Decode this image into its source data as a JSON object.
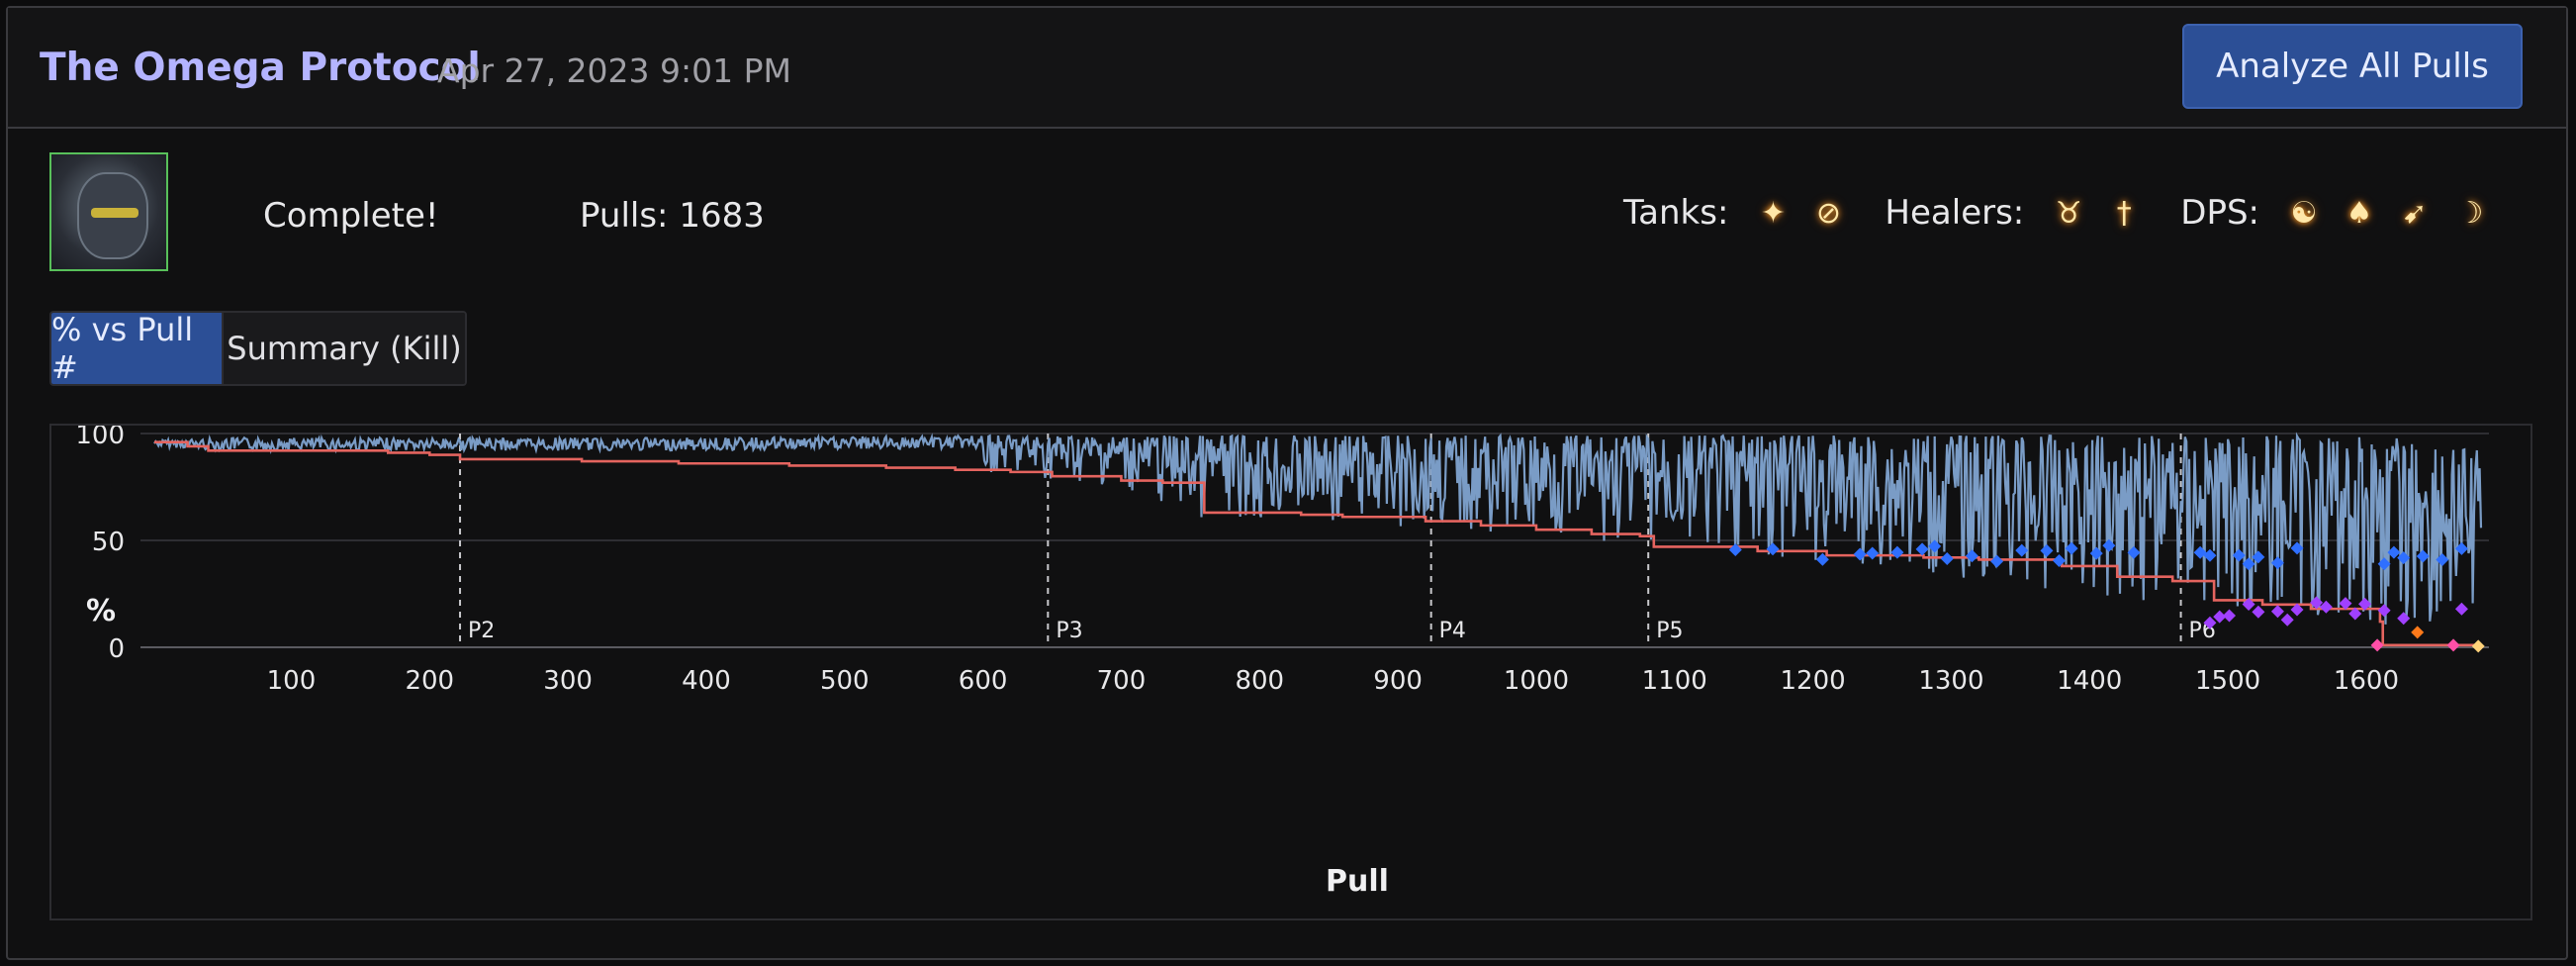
{
  "header": {
    "title": "The Omega Protocol",
    "date": "Apr 27, 2023 9:01 PM",
    "analyze_label": "Analyze All Pulls"
  },
  "info": {
    "status": "Complete!",
    "pulls": "Pulls: 1683",
    "tanks_label": "Tanks:",
    "healers_label": "Healers:",
    "dps_label": "DPS:",
    "tank_icons": [
      "paladin-job-icon",
      "dark-knight-job-icon"
    ],
    "healer_icons": [
      "astrologian-job-icon",
      "white-mage-job-icon"
    ],
    "dps_icons": [
      "monk-job-icon",
      "samurai-job-icon",
      "machinist-job-icon",
      "summoner-job-icon"
    ]
  },
  "tabs": [
    {
      "label": "% vs Pull #",
      "active": true
    },
    {
      "label": "Summary (Kill)",
      "active": false
    }
  ],
  "colors": {
    "pull_line": "#7a9cc6",
    "best_line": "#e5645f",
    "p5_marker": "#2f6fff",
    "p6_marker": "#a040ff",
    "orange_marker": "#ff7a1a",
    "pink_marker": "#ff4fa8",
    "kill_marker": "#ffd27a",
    "accent": "#2c4f96"
  },
  "chart_data": {
    "type": "line",
    "xlabel": "Pull",
    "ylabel": "%",
    "xlim": [
      1,
      1683
    ],
    "ylim": [
      0,
      100
    ],
    "x_ticks": [
      100,
      200,
      300,
      400,
      500,
      600,
      700,
      800,
      900,
      1000,
      1100,
      1200,
      1300,
      1400,
      1500,
      1600
    ],
    "y_ticks": [
      0,
      50,
      100
    ],
    "grid": "horizontal",
    "phase_lines": [
      {
        "label": "P2",
        "x": 222
      },
      {
        "label": "P3",
        "x": 647
      },
      {
        "label": "P4",
        "x": 924
      },
      {
        "label": "P5",
        "x": 1081
      },
      {
        "label": "P6",
        "x": 1466
      }
    ],
    "best_progress_steps": [
      [
        1,
        96
      ],
      [
        25,
        94
      ],
      [
        40,
        92
      ],
      [
        170,
        91
      ],
      [
        200,
        90
      ],
      [
        222,
        88
      ],
      [
        310,
        87
      ],
      [
        380,
        86
      ],
      [
        460,
        85
      ],
      [
        530,
        84
      ],
      [
        580,
        83
      ],
      [
        620,
        82
      ],
      [
        650,
        80
      ],
      [
        700,
        78
      ],
      [
        730,
        77
      ],
      [
        760,
        63
      ],
      [
        830,
        62
      ],
      [
        860,
        61
      ],
      [
        920,
        59
      ],
      [
        960,
        57
      ],
      [
        1000,
        55
      ],
      [
        1040,
        53
      ],
      [
        1075,
        52
      ],
      [
        1085,
        47
      ],
      [
        1160,
        45
      ],
      [
        1210,
        43
      ],
      [
        1280,
        42
      ],
      [
        1320,
        41
      ],
      [
        1380,
        38
      ],
      [
        1420,
        33
      ],
      [
        1460,
        31
      ],
      [
        1490,
        22
      ],
      [
        1525,
        20
      ],
      [
        1560,
        18
      ],
      [
        1610,
        12
      ],
      [
        1612,
        1
      ],
      [
        1683,
        1
      ]
    ],
    "pull_envelope": [
      [
        1,
        97,
        94
      ],
      [
        50,
        98,
        92
      ],
      [
        222,
        98,
        88
      ],
      [
        400,
        98,
        86
      ],
      [
        600,
        99,
        82
      ],
      [
        700,
        99,
        75
      ],
      [
        760,
        99,
        60
      ],
      [
        924,
        99,
        56
      ],
      [
        1081,
        99,
        47
      ],
      [
        1200,
        99,
        40
      ],
      [
        1466,
        99,
        20
      ],
      [
        1610,
        99,
        8
      ],
      [
        1683,
        92,
        1
      ]
    ],
    "kill_pull": 1683
  }
}
